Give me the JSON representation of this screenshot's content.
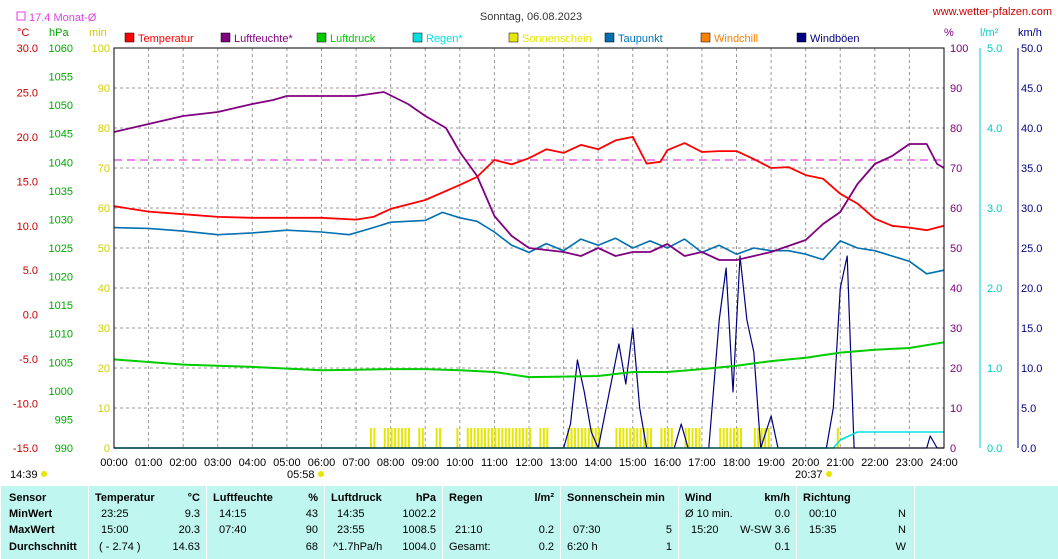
{
  "header": {
    "title": "Sonntag, 06.08.2023",
    "site": "www.wetter-pfalzen.com",
    "monthly_avg_label": "17.4 Monat-Ø",
    "unit_c": "°C",
    "unit_hpa": "hPa",
    "unit_min": "min",
    "unit_pct": "%",
    "unit_lm2": "l/m²",
    "unit_kmh": "km/h",
    "sunrise": "05:58",
    "sunset": "20:37",
    "left_time": "14:39"
  },
  "chart_data": {
    "type": "line",
    "title": "Sonntag, 06.08.2023",
    "x_ticks": [
      "00:00",
      "01:00",
      "02:00",
      "03:00",
      "04:00",
      "05:00",
      "06:00",
      "07:00",
      "08:00",
      "09:00",
      "10:00",
      "11:00",
      "12:00",
      "13:00",
      "14:00",
      "15:00",
      "16:00",
      "17:00",
      "18:00",
      "19:00",
      "20:00",
      "21:00",
      "22:00",
      "23:00",
      "24:00"
    ],
    "axes": {
      "temperature_c": {
        "ticks": [
          "30.0",
          "25.0",
          "20.0",
          "15.0",
          "10.0",
          "5.0",
          "0.0",
          "-5.0",
          "-10.0",
          "-15.0"
        ],
        "range": [
          -15,
          30
        ]
      },
      "pressure_hpa": {
        "ticks": [
          "1060",
          "1055",
          "1050",
          "1045",
          "1040",
          "1035",
          "1030",
          "1025",
          "1020",
          "1015",
          "1010",
          "1005",
          "1000",
          "995",
          "990"
        ],
        "range": [
          990,
          1060
        ]
      },
      "sunshine_min": {
        "ticks": [
          "100",
          "90",
          "80",
          "70",
          "60",
          "50",
          "40",
          "30",
          "20",
          "10",
          "0"
        ],
        "range": [
          0,
          100
        ]
      },
      "humidity_pct": {
        "ticks": [
          "100",
          "90",
          "80",
          "70",
          "60",
          "50",
          "40",
          "30",
          "20",
          "10",
          "0"
        ],
        "range": [
          0,
          100
        ]
      },
      "rain_lm2": {
        "ticks": [
          "5.0",
          "4.0",
          "3.0",
          "2.0",
          "1.0",
          "0.0"
        ],
        "range": [
          0,
          5
        ]
      },
      "wind_kmh": {
        "ticks": [
          "50.0",
          "45.0",
          "40.0",
          "35.0",
          "30.0",
          "25.0",
          "20.0",
          "15.0",
          "10.0",
          "5.0",
          "0.0"
        ],
        "range": [
          0,
          50
        ]
      }
    },
    "legend": [
      {
        "name": "Temperatur",
        "color": "#ff0000"
      },
      {
        "name": "Luftfeuchte*",
        "color": "#800080"
      },
      {
        "name": "Luftdruck",
        "color": "#00cc00"
      },
      {
        "name": "Regen*",
        "color": "#00e0e0"
      },
      {
        "name": "Sonnenschein",
        "color": "#e6e600"
      },
      {
        "name": "Taupunkt",
        "color": "#0070b0"
      },
      {
        "name": "Windchill",
        "color": "#ff8000"
      },
      {
        "name": "Windböen",
        "color": "#000080"
      }
    ],
    "monthly_avg_temp": 17.4,
    "series": {
      "temperature": [
        [
          0,
          12.2
        ],
        [
          1,
          11.6
        ],
        [
          2,
          11.3
        ],
        [
          3,
          11.0
        ],
        [
          4,
          10.9
        ],
        [
          5,
          10.9
        ],
        [
          6,
          10.9
        ],
        [
          7,
          10.7
        ],
        [
          7.5,
          11.0
        ],
        [
          8,
          11.9
        ],
        [
          9,
          12.9
        ],
        [
          10,
          14.6
        ],
        [
          10.5,
          15.5
        ],
        [
          11,
          17.4
        ],
        [
          11.5,
          16.9
        ],
        [
          12,
          17.6
        ],
        [
          12.5,
          18.6
        ],
        [
          13,
          18.2
        ],
        [
          13.5,
          19.1
        ],
        [
          14,
          18.6
        ],
        [
          14.5,
          19.6
        ],
        [
          15,
          20.0
        ],
        [
          15.4,
          17.0
        ],
        [
          15.8,
          17.2
        ],
        [
          16,
          18.5
        ],
        [
          16.5,
          19.3
        ],
        [
          17,
          18.3
        ],
        [
          17.5,
          18.4
        ],
        [
          18,
          18.4
        ],
        [
          18.5,
          17.5
        ],
        [
          19,
          16.5
        ],
        [
          19.5,
          16.6
        ],
        [
          20,
          15.7
        ],
        [
          20.5,
          15.3
        ],
        [
          21,
          13.6
        ],
        [
          21.5,
          12.5
        ],
        [
          22,
          10.8
        ],
        [
          22.5,
          10.0
        ],
        [
          23,
          9.8
        ],
        [
          23.5,
          9.5
        ],
        [
          24,
          10.0
        ]
      ],
      "humidity": [
        [
          0,
          79
        ],
        [
          1,
          81
        ],
        [
          2,
          83
        ],
        [
          3,
          84
        ],
        [
          4,
          86
        ],
        [
          4.6,
          87
        ],
        [
          5,
          88
        ],
        [
          6,
          88
        ],
        [
          7,
          88
        ],
        [
          7.8,
          89
        ],
        [
          8.5,
          86
        ],
        [
          9,
          83
        ],
        [
          9.6,
          80
        ],
        [
          10,
          74
        ],
        [
          10.5,
          68
        ],
        [
          11,
          58
        ],
        [
          11.5,
          53
        ],
        [
          12,
          50
        ],
        [
          13,
          49
        ],
        [
          13.5,
          48
        ],
        [
          14,
          50
        ],
        [
          14.5,
          48
        ],
        [
          15,
          49
        ],
        [
          15.5,
          49
        ],
        [
          16,
          51
        ],
        [
          16.5,
          48
        ],
        [
          17,
          49
        ],
        [
          17.5,
          47
        ],
        [
          18,
          47
        ],
        [
          18.5,
          48
        ],
        [
          19,
          49
        ],
        [
          20,
          52
        ],
        [
          20.5,
          56
        ],
        [
          21,
          59
        ],
        [
          21.5,
          66
        ],
        [
          22,
          71
        ],
        [
          22.5,
          73
        ],
        [
          23,
          76
        ],
        [
          23.5,
          76
        ],
        [
          23.8,
          71
        ],
        [
          24,
          70
        ]
      ],
      "pressure": [
        [
          0,
          1005.5
        ],
        [
          2,
          1004.6
        ],
        [
          4,
          1004.2
        ],
        [
          6,
          1003.6
        ],
        [
          7,
          1003.7
        ],
        [
          8,
          1003.8
        ],
        [
          9,
          1003.8
        ],
        [
          10,
          1003.6
        ],
        [
          11,
          1003.3
        ],
        [
          12,
          1002.4
        ],
        [
          13,
          1002.5
        ],
        [
          14,
          1002.6
        ],
        [
          15,
          1003.3
        ],
        [
          16,
          1003.3
        ],
        [
          17,
          1003.8
        ],
        [
          18,
          1004.4
        ],
        [
          19,
          1005.2
        ],
        [
          20,
          1005.8
        ],
        [
          21,
          1006.7
        ],
        [
          22,
          1007.2
        ],
        [
          23,
          1007.5
        ],
        [
          24,
          1008.5
        ]
      ],
      "dewpoint": [
        [
          0,
          9.8
        ],
        [
          1,
          9.7
        ],
        [
          2,
          9.4
        ],
        [
          3,
          9.0
        ],
        [
          4,
          9.2
        ],
        [
          5,
          9.5
        ],
        [
          6,
          9.3
        ],
        [
          6.8,
          9.0
        ],
        [
          7.5,
          9.8
        ],
        [
          8,
          10.4
        ],
        [
          9,
          10.6
        ],
        [
          9.5,
          11.5
        ],
        [
          10,
          10.9
        ],
        [
          10.5,
          10.5
        ],
        [
          11,
          9.3
        ],
        [
          11.5,
          7.8
        ],
        [
          12,
          7.0
        ],
        [
          12.5,
          8.0
        ],
        [
          13,
          7.2
        ],
        [
          13.5,
          8.5
        ],
        [
          14,
          7.8
        ],
        [
          14.5,
          8.6
        ],
        [
          15,
          7.5
        ],
        [
          15.5,
          8.3
        ],
        [
          16,
          7.5
        ],
        [
          16.5,
          8.5
        ],
        [
          17,
          7.0
        ],
        [
          17.5,
          7.8
        ],
        [
          18,
          6.8
        ],
        [
          18.5,
          7.5
        ],
        [
          19,
          7.2
        ],
        [
          19.5,
          7.2
        ],
        [
          20,
          6.8
        ],
        [
          20.5,
          6.2
        ],
        [
          21,
          8.3
        ],
        [
          21.5,
          7.5
        ],
        [
          22,
          7.2
        ],
        [
          22.5,
          6.6
        ],
        [
          23,
          6.0
        ],
        [
          23.5,
          4.6
        ],
        [
          24,
          5.0
        ]
      ],
      "rain_total": [
        [
          0,
          0
        ],
        [
          20.8,
          0
        ],
        [
          21.0,
          0.1
        ],
        [
          21.5,
          0.2
        ],
        [
          24,
          0.2
        ]
      ],
      "wind_gusts": [
        [
          0,
          0
        ],
        [
          13,
          0
        ],
        [
          13.2,
          3
        ],
        [
          13.4,
          11
        ],
        [
          13.6,
          7
        ],
        [
          13.8,
          2
        ],
        [
          14.0,
          0
        ],
        [
          14.6,
          13
        ],
        [
          14.8,
          8
        ],
        [
          15.0,
          15
        ],
        [
          15.2,
          5
        ],
        [
          15.4,
          0
        ],
        [
          16.2,
          0
        ],
        [
          16.4,
          3
        ],
        [
          16.6,
          0
        ],
        [
          17.2,
          0
        ],
        [
          17.5,
          16
        ],
        [
          17.7,
          22.5
        ],
        [
          17.9,
          7
        ],
        [
          18.1,
          24
        ],
        [
          18.3,
          16
        ],
        [
          18.5,
          12
        ],
        [
          18.7,
          0
        ],
        [
          19.0,
          4
        ],
        [
          19.2,
          0
        ],
        [
          20.6,
          0
        ],
        [
          20.8,
          5
        ],
        [
          21.0,
          20
        ],
        [
          21.2,
          24
        ],
        [
          21.4,
          0
        ],
        [
          23.5,
          0
        ],
        [
          23.6,
          1.5
        ],
        [
          23.8,
          0
        ],
        [
          24,
          0
        ]
      ],
      "sunshine_bars": [
        [
          7.4,
          7.6
        ],
        [
          7.8,
          8.5
        ],
        [
          8.8,
          9.0
        ],
        [
          9.3,
          9.5
        ],
        [
          9.9,
          10.0
        ],
        [
          10.2,
          12.0
        ],
        [
          12.3,
          12.6
        ],
        [
          13.1,
          14.0
        ],
        [
          14.5,
          15.5
        ],
        [
          15.8,
          16.2
        ],
        [
          16.5,
          17.0
        ],
        [
          17.5,
          18.2
        ],
        [
          18.5,
          19.0
        ],
        [
          20.9,
          21.0
        ]
      ]
    }
  },
  "summary": {
    "headers": {
      "sensor": "Sensor",
      "temperature": "Temperatur",
      "temperature_unit": "°C",
      "humidity": "Luftfeuchte",
      "humidity_unit": "%",
      "pressure": "Luftdruck",
      "pressure_unit": "hPa",
      "rain": "Regen",
      "rain_unit": "l/m²",
      "sun": "Sonnenschein min",
      "wind": "Wind",
      "wind_unit": "km/h",
      "direction": "Richtung"
    },
    "row_labels": [
      "MinWert",
      "MaxWert",
      "Durchschnitt"
    ],
    "temperature": [
      [
        "23:25",
        "9.3"
      ],
      [
        "15:00",
        "20.3"
      ],
      [
        "( - 2.74 )",
        "14.63"
      ]
    ],
    "humidity": [
      [
        "14:15",
        "43"
      ],
      [
        "07:40",
        "90"
      ],
      [
        "",
        "68"
      ]
    ],
    "pressure": [
      [
        "14:35",
        "1002.2"
      ],
      [
        "23:55",
        "1008.5"
      ],
      [
        "^1.7hPa/h",
        "1004.0"
      ]
    ],
    "rain": [
      [
        "",
        ""
      ],
      [
        "21:10",
        "0.2"
      ],
      [
        "Gesamt:",
        "0.2"
      ]
    ],
    "sun": [
      [
        "",
        ""
      ],
      [
        "07:30",
        "5"
      ],
      [
        "6:20 h",
        "1"
      ]
    ],
    "wind": [
      [
        "Ø 10 min.",
        "0.0"
      ],
      [
        "15:20",
        "W-SW 3.6"
      ],
      [
        "",
        "0.1"
      ]
    ],
    "direction": [
      [
        "00:10",
        "N"
      ],
      [
        "15:35",
        "N"
      ],
      [
        "",
        "W"
      ]
    ]
  }
}
